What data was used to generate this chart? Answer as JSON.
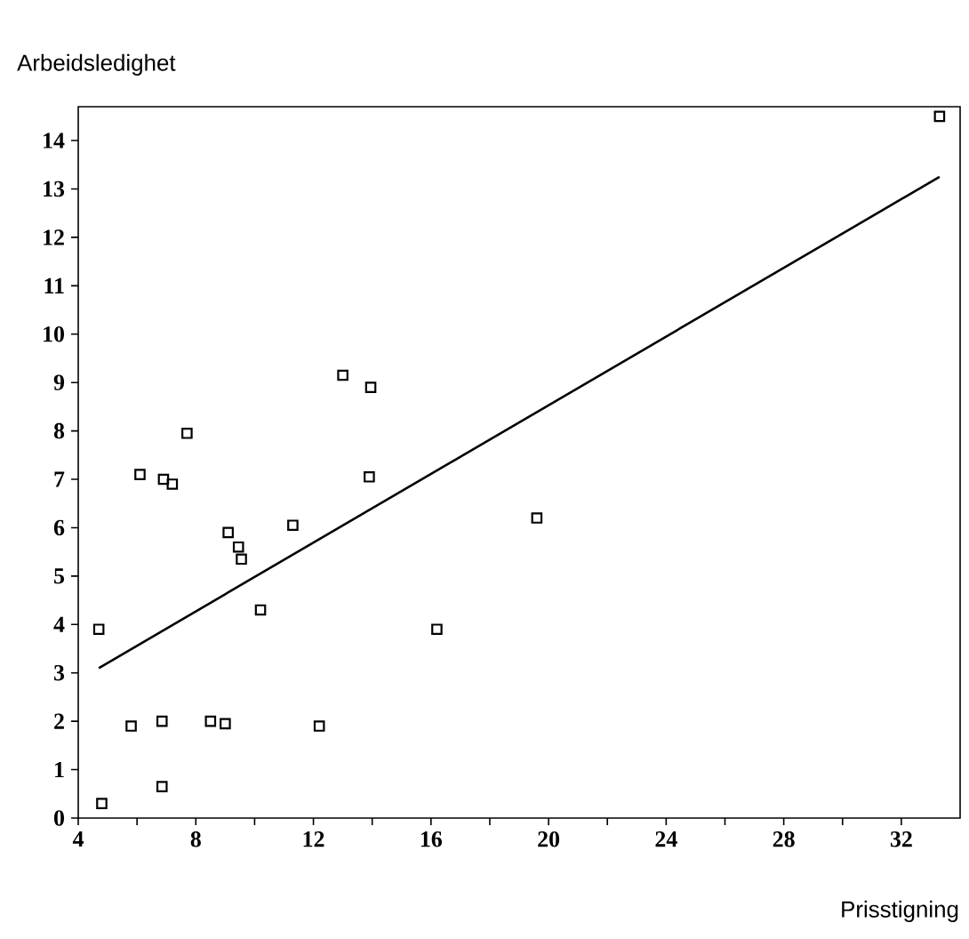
{
  "chart_data": {
    "type": "scatter",
    "xlabel": "Prisstigning",
    "ylabel": "Arbeidsledighet",
    "xlim": [
      4,
      34
    ],
    "ylim": [
      0,
      14.7
    ],
    "xticks": [
      4,
      {
        "value": 6,
        "label": null
      },
      8,
      {
        "value": 10,
        "label": null
      },
      12,
      {
        "value": 14,
        "label": null
      },
      16,
      {
        "value": 18,
        "label": null
      },
      20,
      {
        "value": 22,
        "label": null
      },
      24,
      {
        "value": 26,
        "label": null
      },
      28,
      {
        "value": 30,
        "label": null
      },
      32
    ],
    "yticks": [
      0,
      1,
      2,
      3,
      4,
      5,
      6,
      7,
      8,
      9,
      10,
      11,
      12,
      13,
      14
    ],
    "grid": false,
    "series": [
      {
        "marker": "square",
        "color": "#000000",
        "x": [
          4.7,
          4.8,
          5.8,
          6.85,
          6.85,
          8.5,
          9.0,
          12.2,
          16.2,
          10.2,
          11.3,
          9.1,
          9.45,
          9.55,
          6.1,
          6.9,
          7.2,
          7.7,
          13.0,
          13.95,
          13.9,
          19.6,
          33.3
        ],
        "values": [
          3.9,
          0.3,
          1.9,
          2.0,
          0.65,
          2.0,
          1.95,
          1.9,
          3.9,
          4.3,
          6.05,
          5.9,
          5.6,
          5.35,
          7.1,
          7.0,
          6.9,
          7.95,
          9.15,
          8.9,
          7.05,
          6.2,
          14.5
        ]
      },
      {
        "type": "line",
        "color": "#000000",
        "x": [
          4.7,
          33.3
        ],
        "values": [
          3.1,
          13.25
        ]
      }
    ]
  }
}
